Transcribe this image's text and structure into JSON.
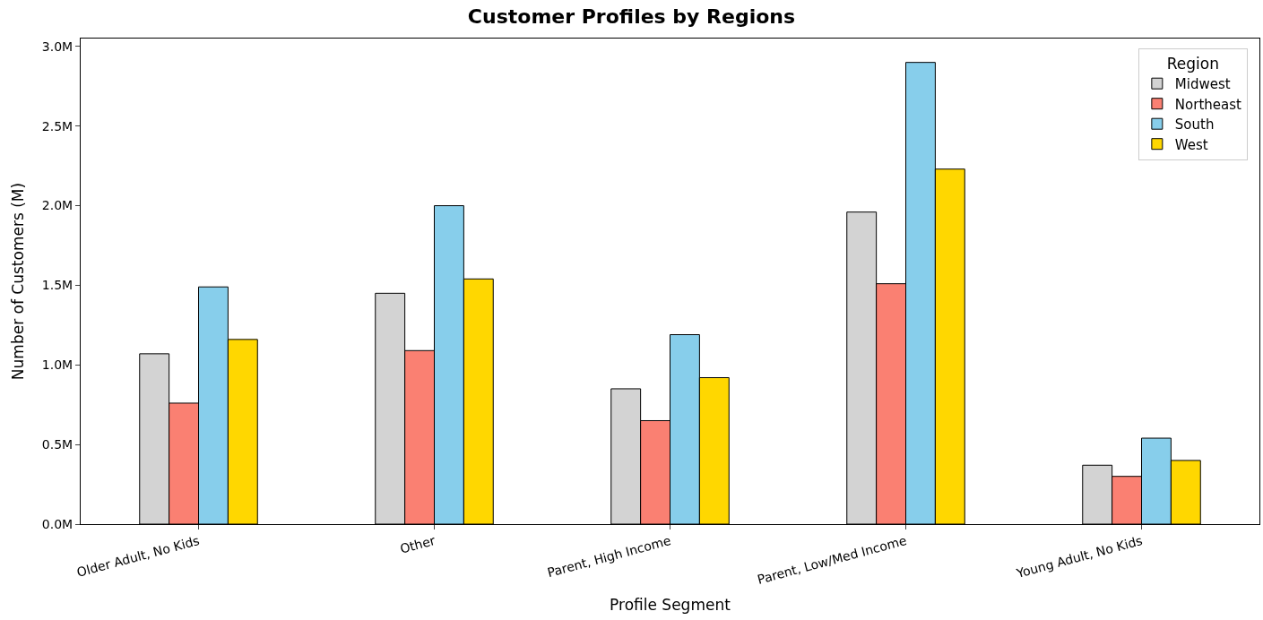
{
  "chart_data": {
    "type": "bar",
    "title": "Customer Profiles by Regions",
    "xlabel": "Profile Segment",
    "ylabel": "Number of Customers (M)",
    "legend_title": "Region",
    "categories": [
      "Older Adult, No Kids",
      "Other",
      "Parent, High Income",
      "Parent, Low/Med Income",
      "Young Adult, No Kids"
    ],
    "series": [
      {
        "name": "Midwest",
        "color": "#d3d3d3",
        "values": [
          1.07,
          1.45,
          0.85,
          1.96,
          0.37
        ]
      },
      {
        "name": "Northeast",
        "color": "#fa8072",
        "values": [
          0.76,
          1.09,
          0.65,
          1.51,
          0.3
        ]
      },
      {
        "name": "South",
        "color": "#87ceeb",
        "values": [
          1.49,
          2.0,
          1.19,
          2.9,
          0.54
        ]
      },
      {
        "name": "West",
        "color": "#ffd700",
        "values": [
          1.16,
          1.54,
          0.92,
          2.23,
          0.4
        ]
      }
    ],
    "ylim": [
      0,
      3.05
    ],
    "yticks": [
      {
        "value": 0,
        "label": "0.0M"
      },
      {
        "value": 0.5,
        "label": "0.5M"
      },
      {
        "value": 1.0,
        "label": "1.0M"
      },
      {
        "value": 1.5,
        "label": "1.5M"
      },
      {
        "value": 2.0,
        "label": "2.0M"
      },
      {
        "value": 2.5,
        "label": "2.5M"
      },
      {
        "value": 3.0,
        "label": "3.0M"
      }
    ],
    "legend": "top right"
  }
}
